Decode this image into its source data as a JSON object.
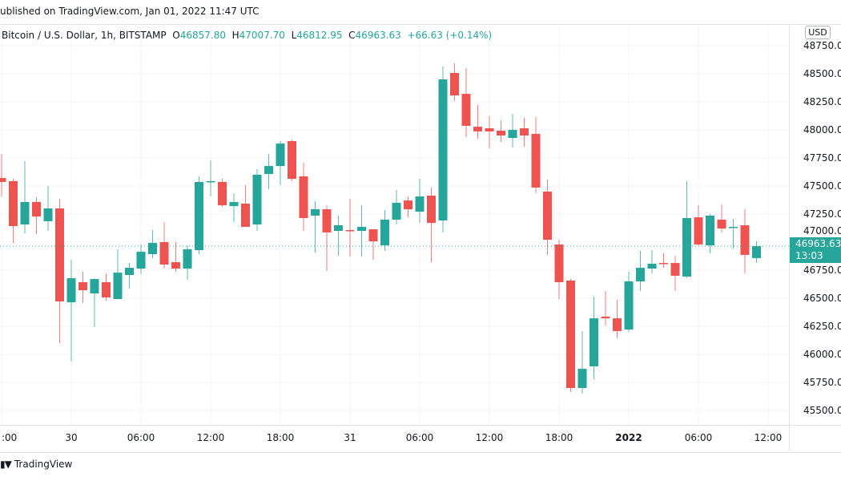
{
  "header": {
    "published": "ublished on TradingView.com, Jan 01, 2022 11:47 UTC"
  },
  "legend": {
    "symbol": "Bitcoin / U.S. Dollar, 1h, BITSTAMP",
    "o_label": "O",
    "o": "46857.80",
    "h_label": "H",
    "h": "47007.70",
    "l_label": "L",
    "l": "46812.95",
    "c_label": "C",
    "c": "46963.63",
    "change": "+66.63 (+0.14%)"
  },
  "currency": "USD",
  "last_price": {
    "price": "46963.63",
    "countdown": "13:03"
  },
  "footer": {
    "logo_text": "TradingView"
  },
  "colors": {
    "up": "#26a69a",
    "down": "#ef5350",
    "grid": "#f0f3fa"
  },
  "chart_data": {
    "type": "candlestick",
    "interval": "1h",
    "price_axis_labels": [
      "48750.00",
      "48500.00",
      "48250.00",
      "48000.00",
      "47750.00",
      "47500.00",
      "47250.00",
      "47000.00",
      "46750.00",
      "46500.00",
      "46250.00",
      "46000.00",
      "45750.00",
      "45500.00"
    ],
    "ylim": [
      45450,
      48800
    ],
    "time_axis_labels": [
      ":00",
      "30",
      "06:00",
      "12:00",
      "18:00",
      "31",
      "06:00",
      "12:00",
      "18:00",
      "2022",
      "06:00",
      "12:00"
    ],
    "bold_time_labels": [
      "2022"
    ],
    "first_candle": "2021-12-29 18:00",
    "candles": [
      [
        47571,
        47786,
        47407,
        47536
      ],
      [
        47543,
        47564,
        46993,
        47143
      ],
      [
        47157,
        47721,
        47078,
        47357
      ],
      [
        47357,
        47400,
        47071,
        47228
      ],
      [
        47186,
        47500,
        47100,
        47300
      ],
      [
        47300,
        47386,
        46100,
        46471
      ],
      [
        46464,
        46843,
        45936,
        46678
      ],
      [
        46643,
        46736,
        46457,
        46571
      ],
      [
        46543,
        46678,
        46243,
        46671
      ],
      [
        46643,
        46721,
        46478,
        46507
      ],
      [
        46493,
        46936,
        46493,
        46728
      ],
      [
        46707,
        46814,
        46586,
        46771
      ],
      [
        46764,
        46979,
        46714,
        46914
      ],
      [
        46893,
        47107,
        46857,
        46993
      ],
      [
        47000,
        47178,
        46764,
        46800
      ],
      [
        46821,
        47000,
        46736,
        46764
      ],
      [
        46764,
        46971,
        46664,
        46936
      ],
      [
        46928,
        47586,
        46893,
        47536
      ],
      [
        47536,
        47728,
        47407,
        47543
      ],
      [
        47536,
        47564,
        47314,
        47328
      ],
      [
        47321,
        47436,
        47178,
        47357
      ],
      [
        47343,
        47507,
        47136,
        47136
      ],
      [
        47157,
        47650,
        47100,
        47600
      ],
      [
        47607,
        47786,
        47471,
        47678
      ],
      [
        47678,
        47900,
        47507,
        47878
      ],
      [
        47900,
        47914,
        47543,
        47564
      ],
      [
        47586,
        47707,
        47100,
        47214
      ],
      [
        47236,
        47364,
        46907,
        47293
      ],
      [
        47293,
        47328,
        46743,
        47086
      ],
      [
        47100,
        47236,
        46879,
        47150
      ],
      [
        47107,
        47386,
        46871,
        47100
      ],
      [
        47100,
        47328,
        46871,
        47136
      ],
      [
        47114,
        47114,
        46843,
        47007
      ],
      [
        46971,
        47286,
        46921,
        47200
      ],
      [
        47200,
        47464,
        47157,
        47350
      ],
      [
        47371,
        47407,
        47221,
        47293
      ],
      [
        47271,
        47564,
        47171,
        47407
      ],
      [
        47414,
        47486,
        46821,
        47171
      ],
      [
        47193,
        48564,
        47086,
        48450
      ],
      [
        48507,
        48593,
        48257,
        48307
      ],
      [
        48321,
        48550,
        47936,
        48036
      ],
      [
        48028,
        48221,
        47921,
        47986
      ],
      [
        48014,
        48121,
        47836,
        47986
      ],
      [
        47993,
        48086,
        47893,
        47950
      ],
      [
        47928,
        48143,
        47843,
        48000
      ],
      [
        48014,
        48107,
        47850,
        47950
      ],
      [
        47964,
        48114,
        47436,
        47486
      ],
      [
        47450,
        47557,
        46886,
        47021
      ],
      [
        46979,
        47021,
        46493,
        46643
      ],
      [
        46657,
        46671,
        45664,
        45700
      ],
      [
        45700,
        46207,
        45650,
        45871
      ],
      [
        45893,
        46514,
        45778,
        46321
      ],
      [
        46336,
        46564,
        46257,
        46321
      ],
      [
        46321,
        46486,
        46143,
        46207
      ],
      [
        46221,
        46736,
        46200,
        46650
      ],
      [
        46650,
        46921,
        46564,
        46771
      ],
      [
        46764,
        46928,
        46721,
        46807
      ],
      [
        46814,
        46900,
        46771,
        46807
      ],
      [
        46814,
        46879,
        46564,
        46700
      ],
      [
        46693,
        47543,
        46678,
        47214
      ],
      [
        47221,
        47328,
        46964,
        46979
      ],
      [
        46971,
        47250,
        46900,
        47236
      ],
      [
        47200,
        47336,
        47086,
        47121
      ],
      [
        47128,
        47207,
        46943,
        47136
      ],
      [
        47150,
        47293,
        46721,
        46886
      ],
      [
        46857.8,
        47007.7,
        46812.95,
        46963.63
      ]
    ]
  }
}
